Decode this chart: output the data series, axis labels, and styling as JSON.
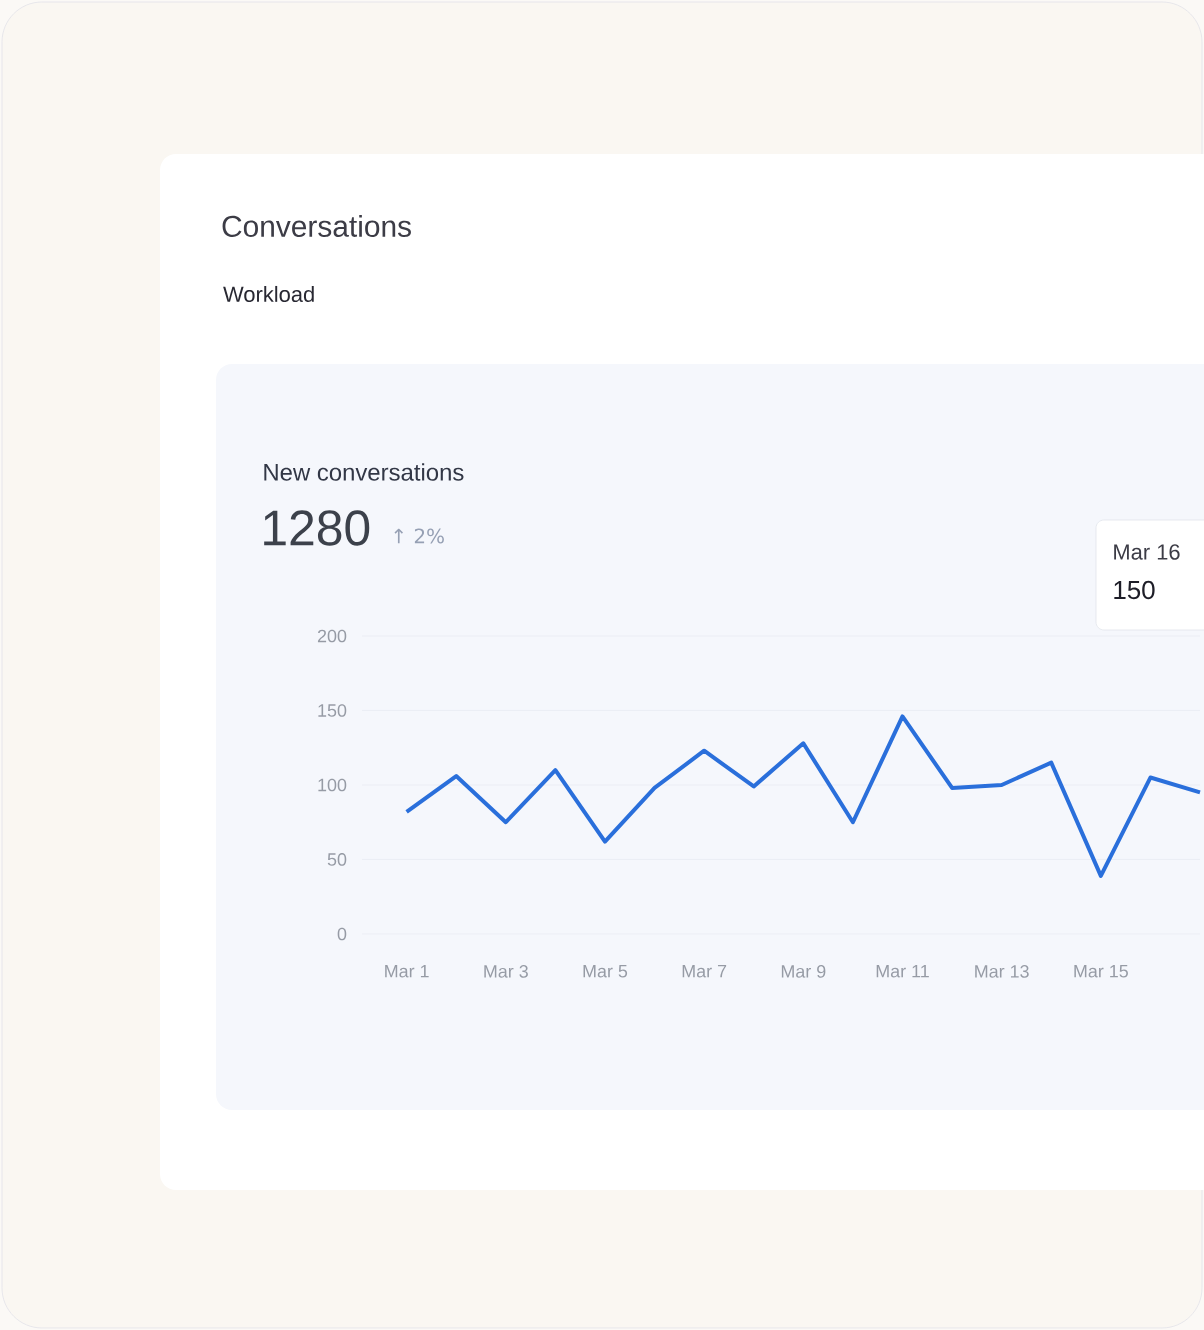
{
  "chart_data": {
    "type": "line",
    "title": "Conversations",
    "subtitle": "Workload",
    "annotations": [
      "New conversations",
      "1280",
      "↑ 2%",
      "Mar 16",
      "150"
    ],
    "categories": [
      "Mar 1",
      null,
      "Mar 3",
      null,
      "Mar 5",
      null,
      "Mar 7",
      null,
      "Mar 9",
      null,
      "Mar 11",
      null,
      "Mar 13",
      null,
      "Mar 15",
      null,
      null
    ],
    "values": [
      82,
      106,
      75,
      110,
      62,
      98,
      123,
      99,
      128,
      75,
      146,
      98,
      100,
      115,
      39,
      105,
      95
    ],
    "color": "#2a6fdb",
    "ylim": [
      0,
      200
    ],
    "yticks": [
      0,
      50,
      100,
      150,
      200
    ],
    "grid": "y"
  }
}
